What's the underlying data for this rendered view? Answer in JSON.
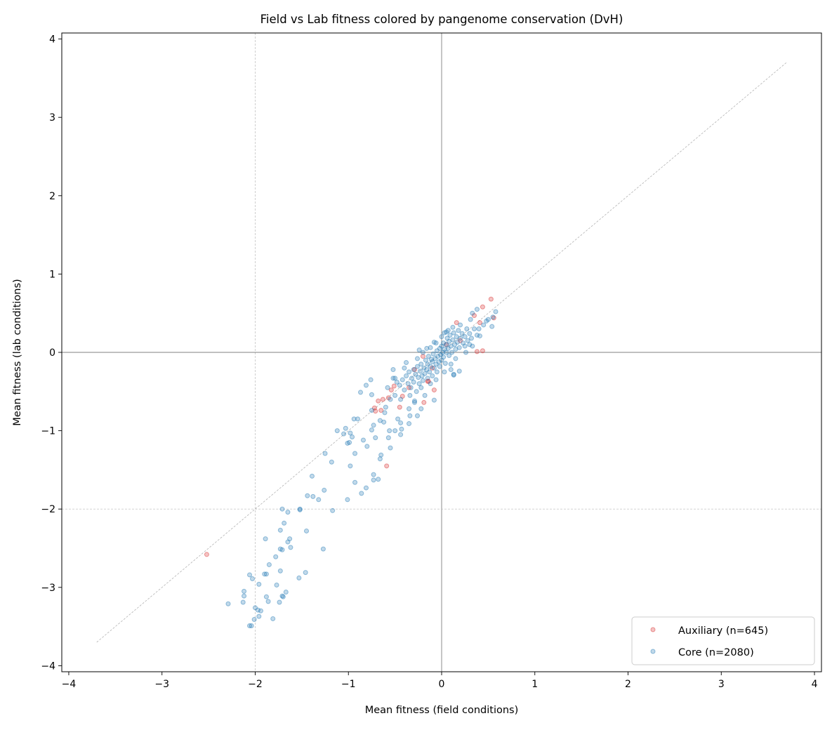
{
  "chart_data": {
    "type": "scatter",
    "title": "Field vs Lab fitness colored by pangenome conservation (DvH)",
    "xlabel": "Mean fitness (field conditions)",
    "ylabel": "Mean fitness (lab conditions)",
    "xlim": [
      -4.075,
      4.075
    ],
    "ylim": [
      -4.077,
      4.077
    ],
    "xticks": [
      -4,
      -3,
      -2,
      -1,
      0,
      1,
      2,
      3,
      4
    ],
    "yticks": [
      -4,
      -3,
      -2,
      -1,
      0,
      1,
      2,
      3,
      4
    ],
    "xtick_labels": [
      "−4",
      "−3",
      "−2",
      "−1",
      "0",
      "1",
      "2",
      "3",
      "4"
    ],
    "ytick_labels": [
      "−4",
      "−3",
      "−2",
      "−1",
      "0",
      "1",
      "2",
      "3",
      "4"
    ],
    "grid": false,
    "legend_position": "lower-right",
    "reference_lines": {
      "diagonal": {
        "from": [
          -3.7,
          -3.7
        ],
        "to": [
          3.7,
          3.7
        ],
        "style": "dashed",
        "color": "#aaaaaa"
      },
      "vlines": [
        {
          "x": 0,
          "style": "solid",
          "color": "#808080"
        },
        {
          "x": -2,
          "style": "dashed",
          "color": "#bbbbbb"
        }
      ],
      "hlines": [
        {
          "y": 0,
          "style": "solid",
          "color": "#808080"
        },
        {
          "y": -2,
          "style": "dashed",
          "color": "#bbbbbb"
        }
      ]
    },
    "series": [
      {
        "name": "Auxiliary (n=645)",
        "color": "#d62728",
        "alpha": 0.35,
        "points": [
          [
            -2.52,
            -2.58
          ],
          [
            -0.59,
            -1.45
          ],
          [
            -0.68,
            -0.62
          ],
          [
            -0.72,
            -0.71
          ],
          [
            -0.71,
            -0.75
          ],
          [
            -0.65,
            -0.74
          ],
          [
            -0.57,
            -0.58
          ],
          [
            -0.54,
            -0.48
          ],
          [
            -0.51,
            -0.43
          ],
          [
            -0.45,
            -0.7
          ],
          [
            -0.19,
            -0.64
          ],
          [
            -0.08,
            -0.48
          ],
          [
            -0.15,
            -0.37
          ],
          [
            0.53,
            0.68
          ],
          [
            0.44,
            0.58
          ],
          [
            0.56,
            0.44
          ],
          [
            0.35,
            0.47
          ],
          [
            0.41,
            0.38
          ],
          [
            0.16,
            0.38
          ],
          [
            0.38,
            0.01
          ],
          [
            0.44,
            0.02
          ],
          [
            -0.63,
            -0.6
          ],
          [
            -0.2,
            -0.05
          ],
          [
            -0.14,
            -0.37
          ],
          [
            -0.42,
            -0.56
          ],
          [
            -0.29,
            -0.22
          ],
          [
            -0.35,
            -0.45
          ],
          [
            -0.1,
            -0.2
          ],
          [
            0.05,
            0.1
          ],
          [
            0.2,
            0.15
          ]
        ]
      },
      {
        "name": "Core (n=2080)",
        "color": "#1f77b4",
        "alpha": 0.35,
        "points": [
          [
            -2.29,
            -3.21
          ],
          [
            -2.13,
            -3.19
          ],
          [
            -2.12,
            -3.05
          ],
          [
            -2.12,
            -3.11
          ],
          [
            -2.06,
            -2.84
          ],
          [
            -2.03,
            -2.89
          ],
          [
            -1.96,
            -2.96
          ],
          [
            -2.0,
            -3.26
          ],
          [
            -1.97,
            -3.29
          ],
          [
            -1.94,
            -3.3
          ],
          [
            -1.96,
            -3.37
          ],
          [
            -2.01,
            -3.41
          ],
          [
            -2.06,
            -3.49
          ],
          [
            -2.04,
            -3.49
          ],
          [
            -1.88,
            -3.12
          ],
          [
            -1.86,
            -3.18
          ],
          [
            -1.81,
            -3.4
          ],
          [
            -1.77,
            -2.97
          ],
          [
            -1.74,
            -3.19
          ],
          [
            -1.71,
            -3.11
          ],
          [
            -1.7,
            -3.12
          ],
          [
            -1.67,
            -3.06
          ],
          [
            -1.9,
            -2.83
          ],
          [
            -1.88,
            -2.83
          ],
          [
            -1.85,
            -2.71
          ],
          [
            -1.78,
            -2.61
          ],
          [
            -1.73,
            -2.79
          ],
          [
            -1.89,
            -2.38
          ],
          [
            -1.73,
            -2.51
          ],
          [
            -1.71,
            -2.52
          ],
          [
            -1.65,
            -2.42
          ],
          [
            -1.63,
            -2.38
          ],
          [
            -1.62,
            -2.49
          ],
          [
            -1.73,
            -2.27
          ],
          [
            -1.69,
            -2.18
          ],
          [
            -1.71,
            -2.0
          ],
          [
            -1.65,
            -2.04
          ],
          [
            -1.52,
            -2.0
          ],
          [
            -1.52,
            -2.01
          ],
          [
            -1.45,
            -2.28
          ],
          [
            -1.53,
            -2.88
          ],
          [
            -1.46,
            -2.81
          ],
          [
            -1.27,
            -2.51
          ],
          [
            -1.17,
            -2.02
          ],
          [
            -1.44,
            -1.83
          ],
          [
            -1.38,
            -1.84
          ],
          [
            -1.32,
            -1.88
          ],
          [
            -1.26,
            -1.76
          ],
          [
            -1.01,
            -1.88
          ],
          [
            -1.39,
            -1.58
          ],
          [
            -1.18,
            -1.4
          ],
          [
            -1.25,
            -1.29
          ],
          [
            -0.98,
            -1.45
          ],
          [
            -0.93,
            -1.66
          ],
          [
            -0.86,
            -1.8
          ],
          [
            -0.81,
            -1.73
          ],
          [
            -0.73,
            -1.56
          ],
          [
            -0.73,
            -1.63
          ],
          [
            -0.68,
            -1.62
          ],
          [
            -0.66,
            -1.36
          ],
          [
            -0.65,
            -1.31
          ],
          [
            -0.93,
            -1.29
          ],
          [
            -1.12,
            -1.0
          ],
          [
            -1.03,
            -0.97
          ],
          [
            -1.05,
            -1.04
          ],
          [
            -0.98,
            -1.03
          ],
          [
            -0.96,
            -1.08
          ],
          [
            -1.01,
            -1.16
          ],
          [
            -0.99,
            -1.15
          ],
          [
            -0.84,
            -1.12
          ],
          [
            -0.8,
            -1.2
          ],
          [
            -0.94,
            -0.85
          ],
          [
            -0.9,
            -0.85
          ],
          [
            -0.87,
            -0.51
          ],
          [
            -0.81,
            -0.42
          ],
          [
            -0.76,
            -0.35
          ],
          [
            -0.75,
            -0.54
          ],
          [
            -0.55,
            -1.22
          ],
          [
            -0.71,
            -1.09
          ],
          [
            -0.57,
            -1.09
          ],
          [
            -0.75,
            -0.99
          ],
          [
            -0.73,
            -0.93
          ],
          [
            -0.66,
            -0.87
          ],
          [
            -0.62,
            -0.89
          ],
          [
            -0.56,
            -1.0
          ],
          [
            -0.5,
            -1.0
          ],
          [
            -0.43,
            -0.98
          ],
          [
            -0.44,
            -1.05
          ],
          [
            -0.35,
            -0.91
          ],
          [
            -0.26,
            -0.81
          ],
          [
            -0.34,
            -0.81
          ],
          [
            -0.47,
            -0.85
          ],
          [
            -0.44,
            -0.9
          ],
          [
            -0.22,
            -0.72
          ],
          [
            -0.08,
            -0.61
          ],
          [
            -0.29,
            -0.64
          ],
          [
            -0.35,
            -0.72
          ],
          [
            -0.75,
            -0.74
          ],
          [
            -0.61,
            -0.77
          ],
          [
            -0.52,
            -0.33
          ],
          [
            0.13,
            -0.28
          ],
          [
            0.19,
            -0.24
          ],
          [
            0.1,
            -0.22
          ],
          [
            0.58,
            0.52
          ],
          [
            0.55,
            0.45
          ],
          [
            0.54,
            0.33
          ],
          [
            0.48,
            0.4
          ],
          [
            0.38,
            0.55
          ],
          [
            0.33,
            0.5
          ],
          [
            0.31,
            0.42
          ],
          [
            0.41,
            0.21
          ],
          [
            0.26,
            0.0
          ],
          [
            0.33,
            0.08
          ],
          [
            0.13,
            -0.29
          ],
          [
            -0.52,
            -0.22
          ],
          [
            -0.5,
            -0.33
          ],
          [
            -0.38,
            -0.13
          ],
          [
            -0.08,
            0.13
          ],
          [
            0.03,
            0.25
          ],
          [
            -0.24,
            0.03
          ],
          [
            -0.16,
            0.05
          ],
          [
            -0.45,
            -0.42
          ],
          [
            -0.42,
            -0.35
          ],
          [
            -0.4,
            -0.48
          ],
          [
            -0.38,
            -0.3
          ],
          [
            -0.36,
            -0.4
          ],
          [
            -0.35,
            -0.25
          ],
          [
            -0.33,
            -0.45
          ],
          [
            -0.32,
            -0.33
          ],
          [
            -0.3,
            -0.22
          ],
          [
            -0.3,
            -0.38
          ],
          [
            -0.28,
            -0.28
          ],
          [
            -0.27,
            -0.5
          ],
          [
            -0.26,
            -0.18
          ],
          [
            -0.25,
            -0.32
          ],
          [
            -0.24,
            -0.4
          ],
          [
            -0.23,
            -0.24
          ],
          [
            -0.22,
            -0.15
          ],
          [
            -0.21,
            -0.3
          ],
          [
            -0.2,
            -0.36
          ],
          [
            -0.19,
            -0.2
          ],
          [
            -0.18,
            -0.27
          ],
          [
            -0.17,
            -0.1
          ],
          [
            -0.16,
            -0.22
          ],
          [
            -0.15,
            -0.33
          ],
          [
            -0.15,
            -0.15
          ],
          [
            -0.14,
            -0.05
          ],
          [
            -0.13,
            -0.25
          ],
          [
            -0.12,
            -0.18
          ],
          [
            -0.11,
            -0.09
          ],
          [
            -0.1,
            -0.3
          ],
          [
            -0.1,
            -0.12
          ],
          [
            -0.09,
            -0.02
          ],
          [
            -0.08,
            -0.2
          ],
          [
            -0.07,
            -0.08
          ],
          [
            -0.06,
            -0.15
          ],
          [
            -0.05,
            0.02
          ],
          [
            -0.05,
            -0.25
          ],
          [
            -0.04,
            -0.05
          ],
          [
            -0.03,
            -0.12
          ],
          [
            -0.02,
            0.05
          ],
          [
            -0.02,
            -0.18
          ],
          [
            -0.01,
            -0.03
          ],
          [
            0.0,
            0.08
          ],
          [
            0.0,
            -0.1
          ],
          [
            0.01,
            0.0
          ],
          [
            0.02,
            0.12
          ],
          [
            0.02,
            -0.06
          ],
          [
            0.03,
            0.04
          ],
          [
            0.04,
            -0.14
          ],
          [
            0.05,
            0.1
          ],
          [
            0.05,
            0.0
          ],
          [
            0.06,
            0.18
          ],
          [
            0.07,
            0.05
          ],
          [
            0.08,
            -0.04
          ],
          [
            0.08,
            0.14
          ],
          [
            0.09,
            0.22
          ],
          [
            0.1,
            0.08
          ],
          [
            0.11,
            0.0
          ],
          [
            0.12,
            0.16
          ],
          [
            0.13,
            0.25
          ],
          [
            0.14,
            0.1
          ],
          [
            0.15,
            0.04
          ],
          [
            0.16,
            0.2
          ],
          [
            0.17,
            0.13
          ],
          [
            0.18,
            0.28
          ],
          [
            0.19,
            0.06
          ],
          [
            0.2,
            0.18
          ],
          [
            0.22,
            0.24
          ],
          [
            0.23,
            0.12
          ],
          [
            0.25,
            0.2
          ],
          [
            0.27,
            0.3
          ],
          [
            0.28,
            0.15
          ],
          [
            0.3,
            0.24
          ],
          [
            0.32,
            0.18
          ],
          [
            0.35,
            0.3
          ],
          [
            0.38,
            0.22
          ],
          [
            -0.5,
            -0.55
          ],
          [
            -0.48,
            -0.38
          ],
          [
            -0.55,
            -0.6
          ],
          [
            -0.58,
            -0.45
          ],
          [
            -0.44,
            -0.6
          ],
          [
            -0.6,
            -0.7
          ],
          [
            -0.4,
            -0.2
          ],
          [
            -0.34,
            -0.55
          ],
          [
            -0.29,
            -0.62
          ],
          [
            -0.22,
            -0.45
          ],
          [
            -0.18,
            -0.55
          ],
          [
            -0.12,
            -0.4
          ],
          [
            -0.06,
            -0.35
          ],
          [
            0.03,
            -0.25
          ],
          [
            0.1,
            -0.15
          ],
          [
            -0.26,
            -0.08
          ],
          [
            -0.2,
            0.0
          ],
          [
            -0.12,
            0.06
          ],
          [
            -0.06,
            0.12
          ],
          [
            0.0,
            0.2
          ],
          [
            0.05,
            0.26
          ],
          [
            0.12,
            0.32
          ],
          [
            0.2,
            0.35
          ],
          [
            0.25,
            0.08
          ],
          [
            0.3,
            0.1
          ],
          [
            0.4,
            0.3
          ],
          [
            0.45,
            0.35
          ],
          [
            0.5,
            0.42
          ],
          [
            0.15,
            -0.08
          ],
          [
            0.07,
            0.28
          ]
        ]
      }
    ]
  }
}
